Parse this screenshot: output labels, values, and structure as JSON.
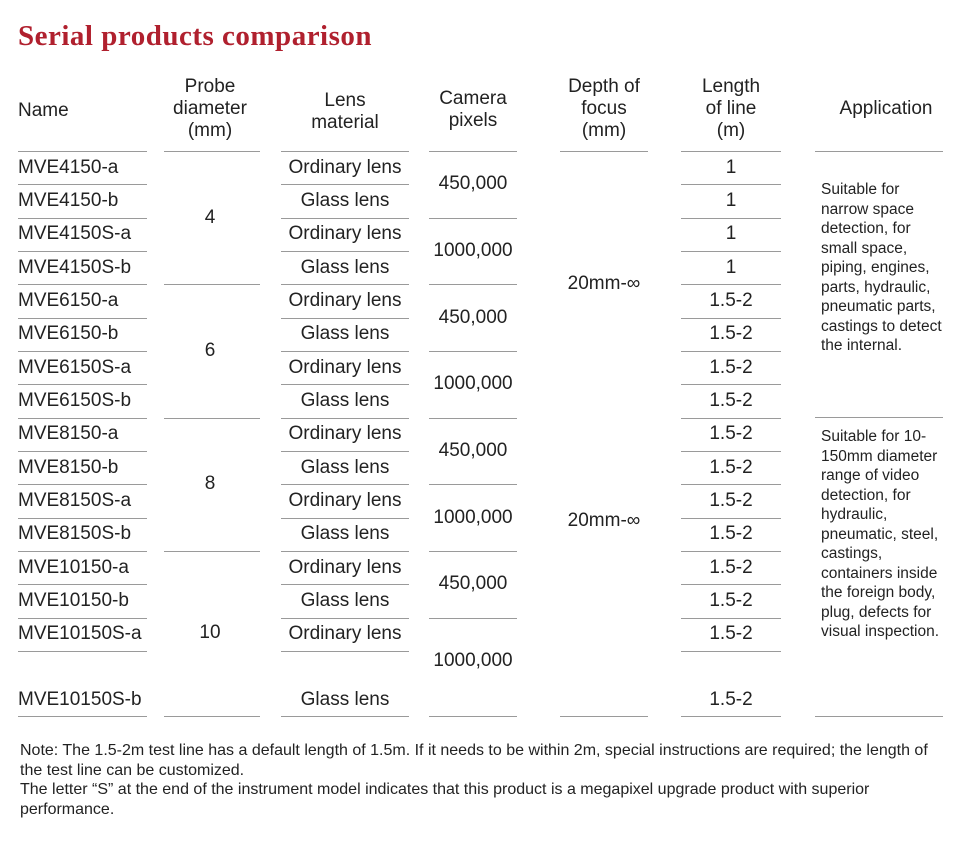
{
  "title": "Serial products comparison",
  "title_color": "#b0202e",
  "headers": {
    "name": "Name",
    "probe": "Probe\ndiameter\n(mm)",
    "lens": "Lens\nmaterial",
    "camera": "Camera\npixels",
    "depth": "Depth of\nfocus\n(mm)",
    "length": "Length\nof line\n(m)",
    "application": "Application"
  },
  "rows": [
    {
      "name": "MVE4150-a",
      "lens": "Ordinary lens",
      "length": "1"
    },
    {
      "name": "MVE4150-b",
      "lens": "Glass lens",
      "length": "1"
    },
    {
      "name": "MVE4150S-a",
      "lens": "Ordinary lens",
      "length": "1"
    },
    {
      "name": "MVE4150S-b",
      "lens": "Glass lens",
      "length": "1"
    },
    {
      "name": "MVE6150-a",
      "lens": "Ordinary lens",
      "length": "1.5-2"
    },
    {
      "name": "MVE6150-b",
      "lens": "Glass lens",
      "length": "1.5-2"
    },
    {
      "name": "MVE6150S-a",
      "lens": "Ordinary lens",
      "length": "1.5-2"
    },
    {
      "name": "MVE6150S-b",
      "lens": "Glass lens",
      "length": "1.5-2"
    },
    {
      "name": "MVE8150-a",
      "lens": "Ordinary lens",
      "length": "1.5-2"
    },
    {
      "name": "MVE8150-b",
      "lens": "Glass lens",
      "length": "1.5-2"
    },
    {
      "name": "MVE8150S-a",
      "lens": "Ordinary lens",
      "length": "1.5-2"
    },
    {
      "name": "MVE8150S-b",
      "lens": "Glass lens",
      "length": "1.5-2"
    },
    {
      "name": "MVE10150-a",
      "lens": "Ordinary lens",
      "length": "1.5-2"
    },
    {
      "name": "MVE10150-b",
      "lens": "Glass lens",
      "length": "1.5-2"
    },
    {
      "name": "MVE10150S-a",
      "lens": "Ordinary lens",
      "length": "1.5-2"
    },
    {
      "name": "MVE10150S-b",
      "lens": "Glass lens",
      "length": "1.5-2"
    }
  ],
  "probe_groups": [
    "4",
    "6",
    "8",
    "10"
  ],
  "camera_groups": [
    "450,000",
    "1000,000",
    "450,000",
    "1000,000",
    "450,000",
    "1000,000",
    "450,000",
    "1000,000"
  ],
  "depth_groups": [
    "20mm-∞",
    "20mm-∞"
  ],
  "applications": [
    "Suitable for narrow space detection, for small space, piping, engines, parts, hydraulic, pneumatic parts, castings to detect the internal.",
    "Suitable for 10-150mm diameter range of video detection, for hydraulic, pneumatic, steel, castings, containers inside the foreign body, plug, defects for visual inspection."
  ],
  "notes": [
    "Note: The 1.5-2m test line has a default length of 1.5m. If it needs to be within 2m, special instructions are required; the length of the test line can be customized.",
    "The letter “S” at the end of the instrument model indicates that this product is a megapixel upgrade product with superior performance."
  ]
}
